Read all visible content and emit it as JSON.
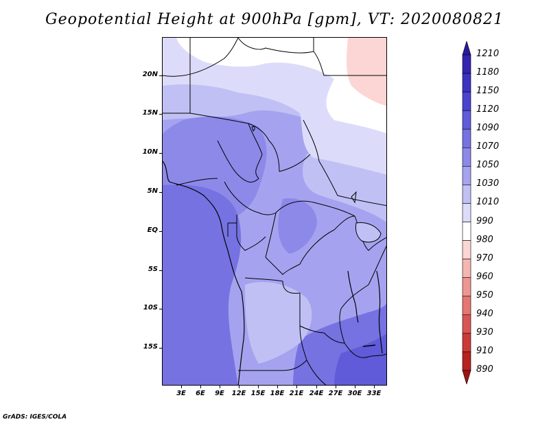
{
  "title": "Geopotential Height at 900hPa [gpm], VT: 2020080821",
  "footer": "GrADS: IGES/COLA",
  "map": {
    "lat_labels": [
      "20N",
      "15N",
      "10N",
      "5N",
      "EQ",
      "5S",
      "10S",
      "15S"
    ],
    "lon_labels": [
      "3E",
      "6E",
      "9E",
      "12E",
      "15E",
      "18E",
      "21E",
      "24E",
      "27E",
      "30E",
      "33E"
    ]
  },
  "colorbar": {
    "levels": [
      "1210",
      "1180",
      "1150",
      "1120",
      "1090",
      "1070",
      "1050",
      "1030",
      "1010",
      "990",
      "980",
      "970",
      "960",
      "950",
      "940",
      "930",
      "910",
      "890"
    ],
    "colors": [
      "#2a1a9e",
      "#3226b0",
      "#3b33c2",
      "#4a44cf",
      "#5f5bd9",
      "#7672e2",
      "#8c89e9",
      "#a5a3ef",
      "#c1c0f4",
      "#dcdcfa",
      "#ffffff",
      "#fbd6d4",
      "#f5b5b1",
      "#ee9692",
      "#e57672",
      "#da5552",
      "#cc3a37",
      "#b8231f",
      "#9e1410"
    ]
  }
}
